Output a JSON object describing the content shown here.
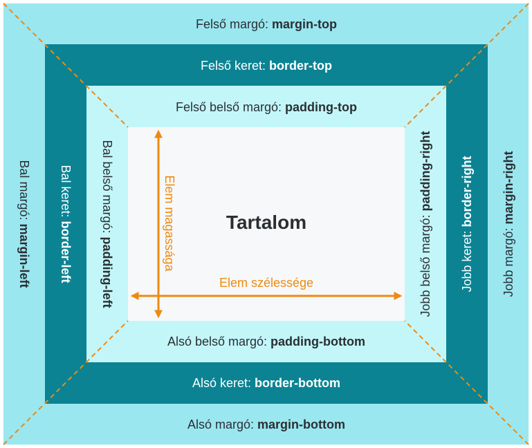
{
  "labels": {
    "margin_top": {
      "prefix": "Felső margó: ",
      "prop": "margin-top"
    },
    "border_top": {
      "prefix": "Felső keret: ",
      "prop": "border-top"
    },
    "padding_top": {
      "prefix": "Felső belső margó: ",
      "prop": "padding-top"
    },
    "padding_bottom": {
      "prefix": "Alsó belső margó: ",
      "prop": "padding-bottom"
    },
    "border_bottom": {
      "prefix": "Alsó keret: ",
      "prop": "border-bottom"
    },
    "margin_bottom": {
      "prefix": "Alsó margó: ",
      "prop": "margin-bottom"
    },
    "margin_left": {
      "prefix": "Bal margó: ",
      "prop": "margin-left"
    },
    "border_left": {
      "prefix": "Bal keret: ",
      "prop": "border-left"
    },
    "padding_left": {
      "prefix": "Bal belső margó: ",
      "prop": "padding-left"
    },
    "padding_right": {
      "prefix": "Jobb belső margó: ",
      "prop": "padding-right"
    },
    "border_right": {
      "prefix": "Jobb keret: ",
      "prop": "border-right"
    },
    "margin_right": {
      "prefix": "Jobb margó: ",
      "prop": "margin-right"
    }
  },
  "content": {
    "title": "Tartalom",
    "height_label": "Elem magassága",
    "width_label": "Elem szélessége"
  },
  "colors": {
    "margin": "#9ae7f0",
    "border": "#0b8393",
    "padding": "#c3f6f9",
    "content": "#f7f8f9",
    "accent": "#ee8a12"
  }
}
